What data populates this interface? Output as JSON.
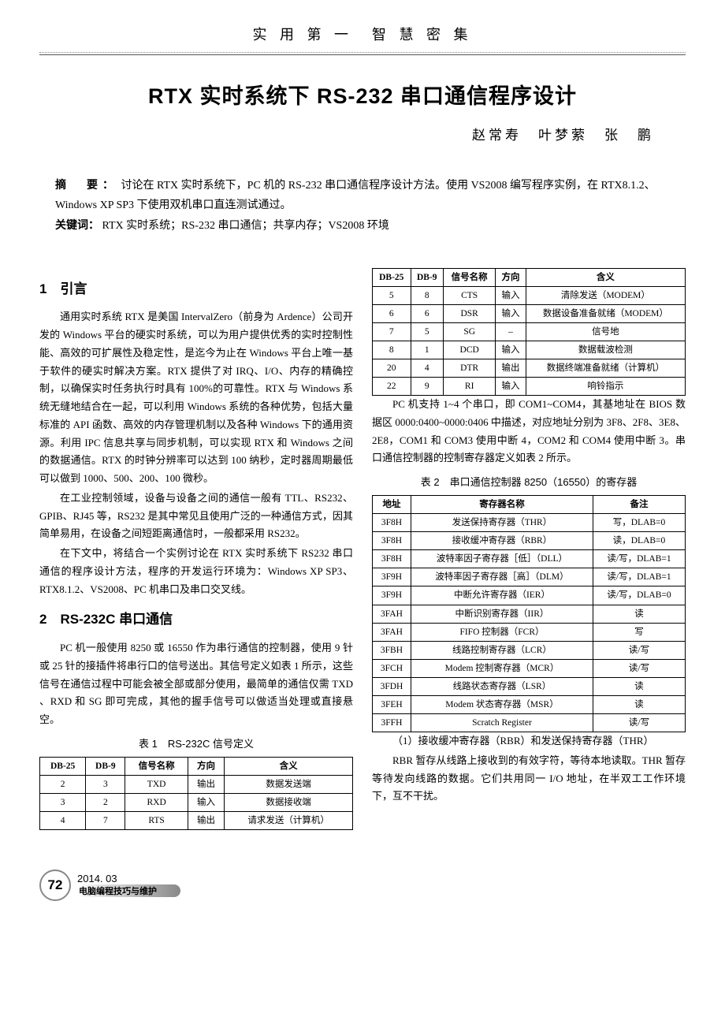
{
  "running_head": "实 用 第 一　智 慧 密 集",
  "title": "RTX 实时系统下 RS-232 串口通信程序设计",
  "authors": "赵常寿　叶梦萦　张　鹏",
  "abstract": {
    "label": "摘　要：",
    "text": "讨论在 RTX 实时系统下，PC 机的 RS-232 串口通信程序设计方法。使用 VS2008 编写程序实例，在 RTX8.1.2、Windows XP SP3 下使用双机串口直连测试通过。",
    "kw_label": "关键词：",
    "kw_text": "RTX 实时系统；RS-232 串口通信；共享内存；VS2008 环境"
  },
  "sections": {
    "s1": {
      "head": "1　引言"
    },
    "s2": {
      "head": "2　RS-232C 串口通信"
    }
  },
  "left_paras": {
    "p1": "通用实时系统 RTX 是美国 IntervalZero（前身为 Ardence）公司开发的 Windows 平台的硬实时系统，可以为用户提供优秀的实时控制性能、高效的可扩展性及稳定性，是迄今为止在 Windows 平台上唯一基于软件的硬实时解决方案。RTX 提供了对 IRQ、I/O、内存的精确控制，以确保实时任务执行时具有 100%的可靠性。RTX 与 Windows 系统无缝地结合在一起，可以利用 Windows 系统的各种优势，包括大量标准的 API 函数、高效的内存管理机制以及各种 Windows 下的通用资源。利用 IPC 信息共享与同步机制，可以实现 RTX 和 Windows 之间的数据通信。RTX 的时钟分辨率可以达到 100 纳秒，定时器周期最低可以做到 1000、500、200、100 微秒。",
    "p2": "在工业控制领域，设备与设备之间的通信一般有 TTL、RS232、GPIB、RJ45 等，RS232 是其中常见且使用广泛的一种通信方式，因其简单易用，在设备之间短距离通信时，一般都采用 RS232。",
    "p3": "在下文中，将结合一个实例讨论在 RTX 实时系统下 RS232 串口通信的程序设计方法，程序的开发运行环境为：Windows XP SP3、RTX8.1.2、VS2008、PC 机串口及串口交叉线。",
    "p4": "PC 机一般使用 8250 或 16550 作为串行通信的控制器，使用 9 针或 25 针的接插件将串行口的信号送出。其信号定义如表 1 所示，这些信号在通信过程中可能会被全部或部分使用，最简单的通信仅需 TXD 、RXD 和 SG 即可完成，其他的握手信号可以做适当处理或直接悬空。"
  },
  "right_paras": {
    "p1": "PC 机支持 1~4 个串口，即 COM1~COM4，其基地址在 BIOS 数据区 0000:0400~0000:0406 中描述，对应地址分别为 3F8、2F8、3E8、2E8，COM1 和 COM3 使用中断 4，COM2 和 COM4 使用中断 3。串口通信控制器的控制寄存器定义如表 2 所示。",
    "p2": "（1）接收缓冲寄存器（RBR）和发送保持寄存器（THR）",
    "p3": "RBR 暂存从线路上接收到的有效字符，等待本地读取。THR 暂存等待发向线路的数据。它们共用同一 I/O 地址，在半双工工作环境下，互不干扰。"
  },
  "table1": {
    "caption": "表 1　RS-232C 信号定义",
    "headers": [
      "DB-25",
      "DB-9",
      "信号名称",
      "方向",
      "含义"
    ],
    "rows_a": [
      [
        "2",
        "3",
        "TXD",
        "输出",
        "数据发送端"
      ],
      [
        "3",
        "2",
        "RXD",
        "输入",
        "数据接收端"
      ],
      [
        "4",
        "7",
        "RTS",
        "输出",
        "请求发送（计算机）"
      ]
    ],
    "rows_b": [
      [
        "5",
        "8",
        "CTS",
        "输入",
        "清除发送（MODEM）"
      ],
      [
        "6",
        "6",
        "DSR",
        "输入",
        "数据设备准备就绪（MODEM）"
      ],
      [
        "7",
        "5",
        "SG",
        "–",
        "信号地"
      ],
      [
        "8",
        "1",
        "DCD",
        "输入",
        "数据载波检测"
      ],
      [
        "20",
        "4",
        "DTR",
        "输出",
        "数据终端准备就绪（计算机）"
      ],
      [
        "22",
        "9",
        "RI",
        "输入",
        "响铃指示"
      ]
    ]
  },
  "table2": {
    "caption": "表 2　串口通信控制器 8250（16550）的寄存器",
    "headers": [
      "地址",
      "寄存器名称",
      "备注"
    ],
    "rows": [
      [
        "3F8H",
        "发送保持寄存器（THR）",
        "写，DLAB=0"
      ],
      [
        "3F8H",
        "接收缓冲寄存器（RBR）",
        "读，DLAB=0"
      ],
      [
        "3F8H",
        "波特率因子寄存器［低］（DLL）",
        "读/写，DLAB=1"
      ],
      [
        "3F9H",
        "波特率因子寄存器［高］（DLM）",
        "读/写，DLAB=1"
      ],
      [
        "3F9H",
        "中断允许寄存器（IER）",
        "读/写，DLAB=0"
      ],
      [
        "3FAH",
        "中断识别寄存器（IIR）",
        "读"
      ],
      [
        "3FAH",
        "FIFO 控制器（FCR）",
        "写"
      ],
      [
        "3FBH",
        "线路控制寄存器（LCR）",
        "读/写"
      ],
      [
        "3FCH",
        "Modem 控制寄存器（MCR）",
        "读/写"
      ],
      [
        "3FDH",
        "线路状态寄存器（LSR）",
        "读"
      ],
      [
        "3FEH",
        "Modem 状态寄存器（MSR）",
        "读"
      ],
      [
        "3FFH",
        "Scratch Register",
        "读/写"
      ]
    ]
  },
  "footer": {
    "pageno": "72",
    "issue": "2014. 03",
    "magazine": "电脑编程技巧与维护"
  }
}
